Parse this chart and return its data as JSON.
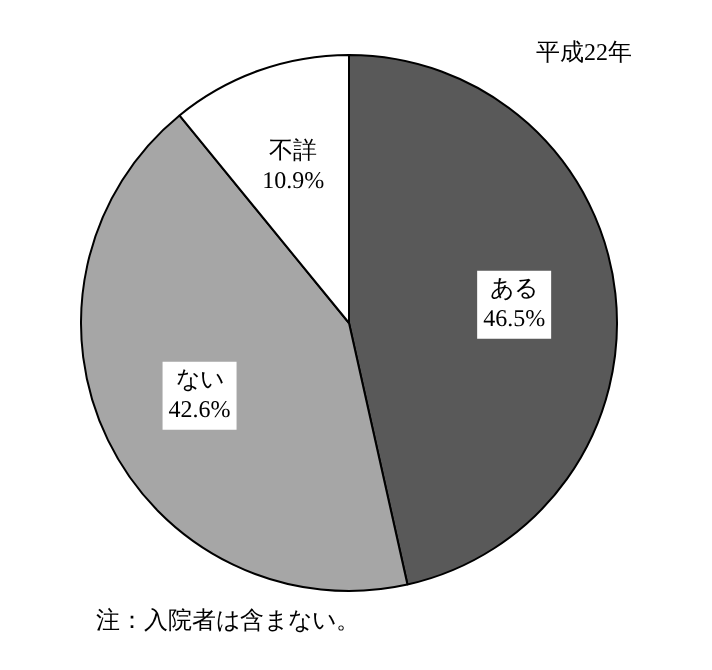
{
  "chart_data": {
    "type": "pie",
    "title": "平成22年",
    "categories": [
      "ある",
      "ない",
      "不詳"
    ],
    "values": [
      46.5,
      42.6,
      10.9
    ],
    "colors": [
      "#595959",
      "#a6a6a6",
      "#ffffff"
    ],
    "value_labels": [
      "46.5%",
      "42.6%",
      "10.9%"
    ],
    "legend": false,
    "annotations": [
      "注：入院者は含まない。"
    ]
  }
}
